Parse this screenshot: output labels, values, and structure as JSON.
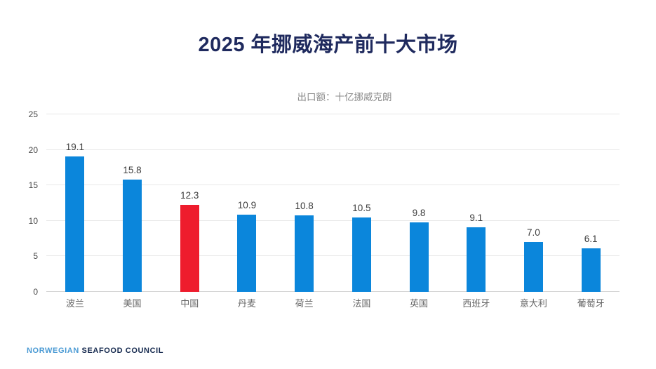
{
  "slide": {
    "title_year": "2025",
    "title_text": "年挪威海产前十大市场",
    "footer_light": "NORWEGIAN",
    "footer_dark": "SEAFOOD COUNCIL"
  },
  "chart_data": {
    "type": "bar",
    "title": "2025 年挪威海产前十大市场",
    "subtitle": "出口额：十亿挪威克朗",
    "categories": [
      "波兰",
      "美国",
      "中国",
      "丹麦",
      "荷兰",
      "法国",
      "英国",
      "西班牙",
      "意大利",
      "葡萄牙"
    ],
    "values": [
      19.1,
      15.8,
      12.3,
      10.9,
      10.8,
      10.5,
      9.8,
      9.1,
      7.0,
      6.1
    ],
    "value_label_decimals": 1,
    "ylim": [
      0,
      25
    ],
    "tick_step": 5,
    "grid": true,
    "legend": "none",
    "highlight_index": 2,
    "highlight_category": "中国",
    "colors": {
      "bar": "#0b86db",
      "highlight": "#ee1c2d",
      "title": "#1f2a5e",
      "footer_light": "#4a9ad4",
      "footer_dark": "#15294e"
    }
  }
}
